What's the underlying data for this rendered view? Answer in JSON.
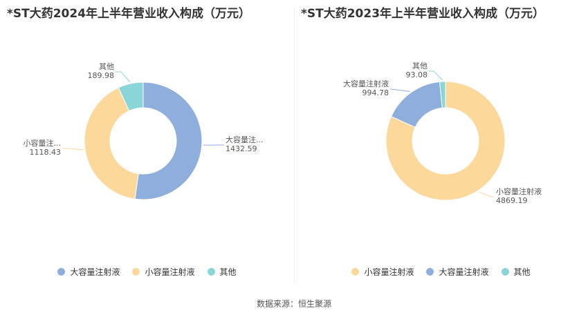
{
  "colors": {
    "大容量注射液": "#8eaedc",
    "小容量注射液": "#fdd89b",
    "其他": "#8ad5d8"
  },
  "source": "数据来源：恒生聚源",
  "chart_data": [
    {
      "type": "pie",
      "title": "*ST大药2024年上半年营业收入构成（万元）",
      "unit": "万元",
      "legend_position": "bottom",
      "slices": [
        {
          "name": "大容量注射液",
          "label": "大容量注...",
          "value": 1432.59
        },
        {
          "name": "小容量注射液",
          "label": "小容量注...",
          "value": 1118.43
        },
        {
          "name": "其他",
          "label": "其他",
          "value": 189.98
        }
      ],
      "legend": [
        "大容量注射液",
        "小容量注射液",
        "其他"
      ]
    },
    {
      "type": "pie",
      "title": "*ST大药2023年上半年营业收入构成（万元）",
      "unit": "万元",
      "legend_position": "bottom",
      "slices": [
        {
          "name": "小容量注射液",
          "label": "小容量注射液",
          "value": 4869.19
        },
        {
          "name": "大容量注射液",
          "label": "大容量注射液",
          "value": 994.78
        },
        {
          "name": "其他",
          "label": "其他",
          "value": 93.08
        }
      ],
      "legend": [
        "小容量注射液",
        "大容量注射液",
        "其他"
      ]
    }
  ]
}
